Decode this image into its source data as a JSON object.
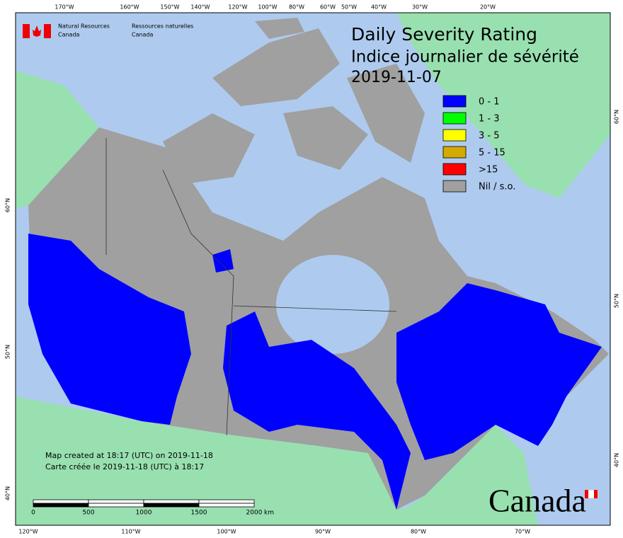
{
  "header": {
    "agency_en": [
      "Natural Resources",
      "Canada"
    ],
    "agency_fr": [
      "Ressources naturelles",
      "Canada"
    ]
  },
  "title": {
    "en": "Daily Severity Rating",
    "fr": "Indice journalier de sévérité",
    "date": "2019-11-07"
  },
  "legend": [
    {
      "label": "0 - 1",
      "color": "#0000ff"
    },
    {
      "label": "1 - 3",
      "color": "#00ff00"
    },
    {
      "label": "3 - 5",
      "color": "#ffff00"
    },
    {
      "label": "5 - 15",
      "color": "#d4aa00"
    },
    {
      "label": ">15",
      "color": "#ff0000"
    },
    {
      "label": "Nil / s.o.",
      "color": "#a0a0a0"
    }
  ],
  "graticule": {
    "top": [
      "170°W",
      "160°W",
      "150°W",
      "140°W",
      "120°W",
      "100°W",
      "80°W",
      "60°W",
      "50°W",
      "40°W",
      "30°W",
      "20°W"
    ],
    "bottom": [
      "120°W",
      "110°W",
      "100°W",
      "90°W",
      "80°W",
      "70°W"
    ],
    "left": [
      "60°N",
      "50°N",
      "40°N"
    ],
    "right": [
      "60°N",
      "50°N",
      "40°N"
    ]
  },
  "scale_bar": {
    "ticks": [
      0,
      500,
      1000,
      1500,
      2000
    ],
    "unit": "km"
  },
  "credits": [
    "Map created at 18:17 (UTC) on 2019-11-18",
    "Carte créée le 2019-11-18 (UTC) à 18:17"
  ],
  "wordmark": "Canada"
}
